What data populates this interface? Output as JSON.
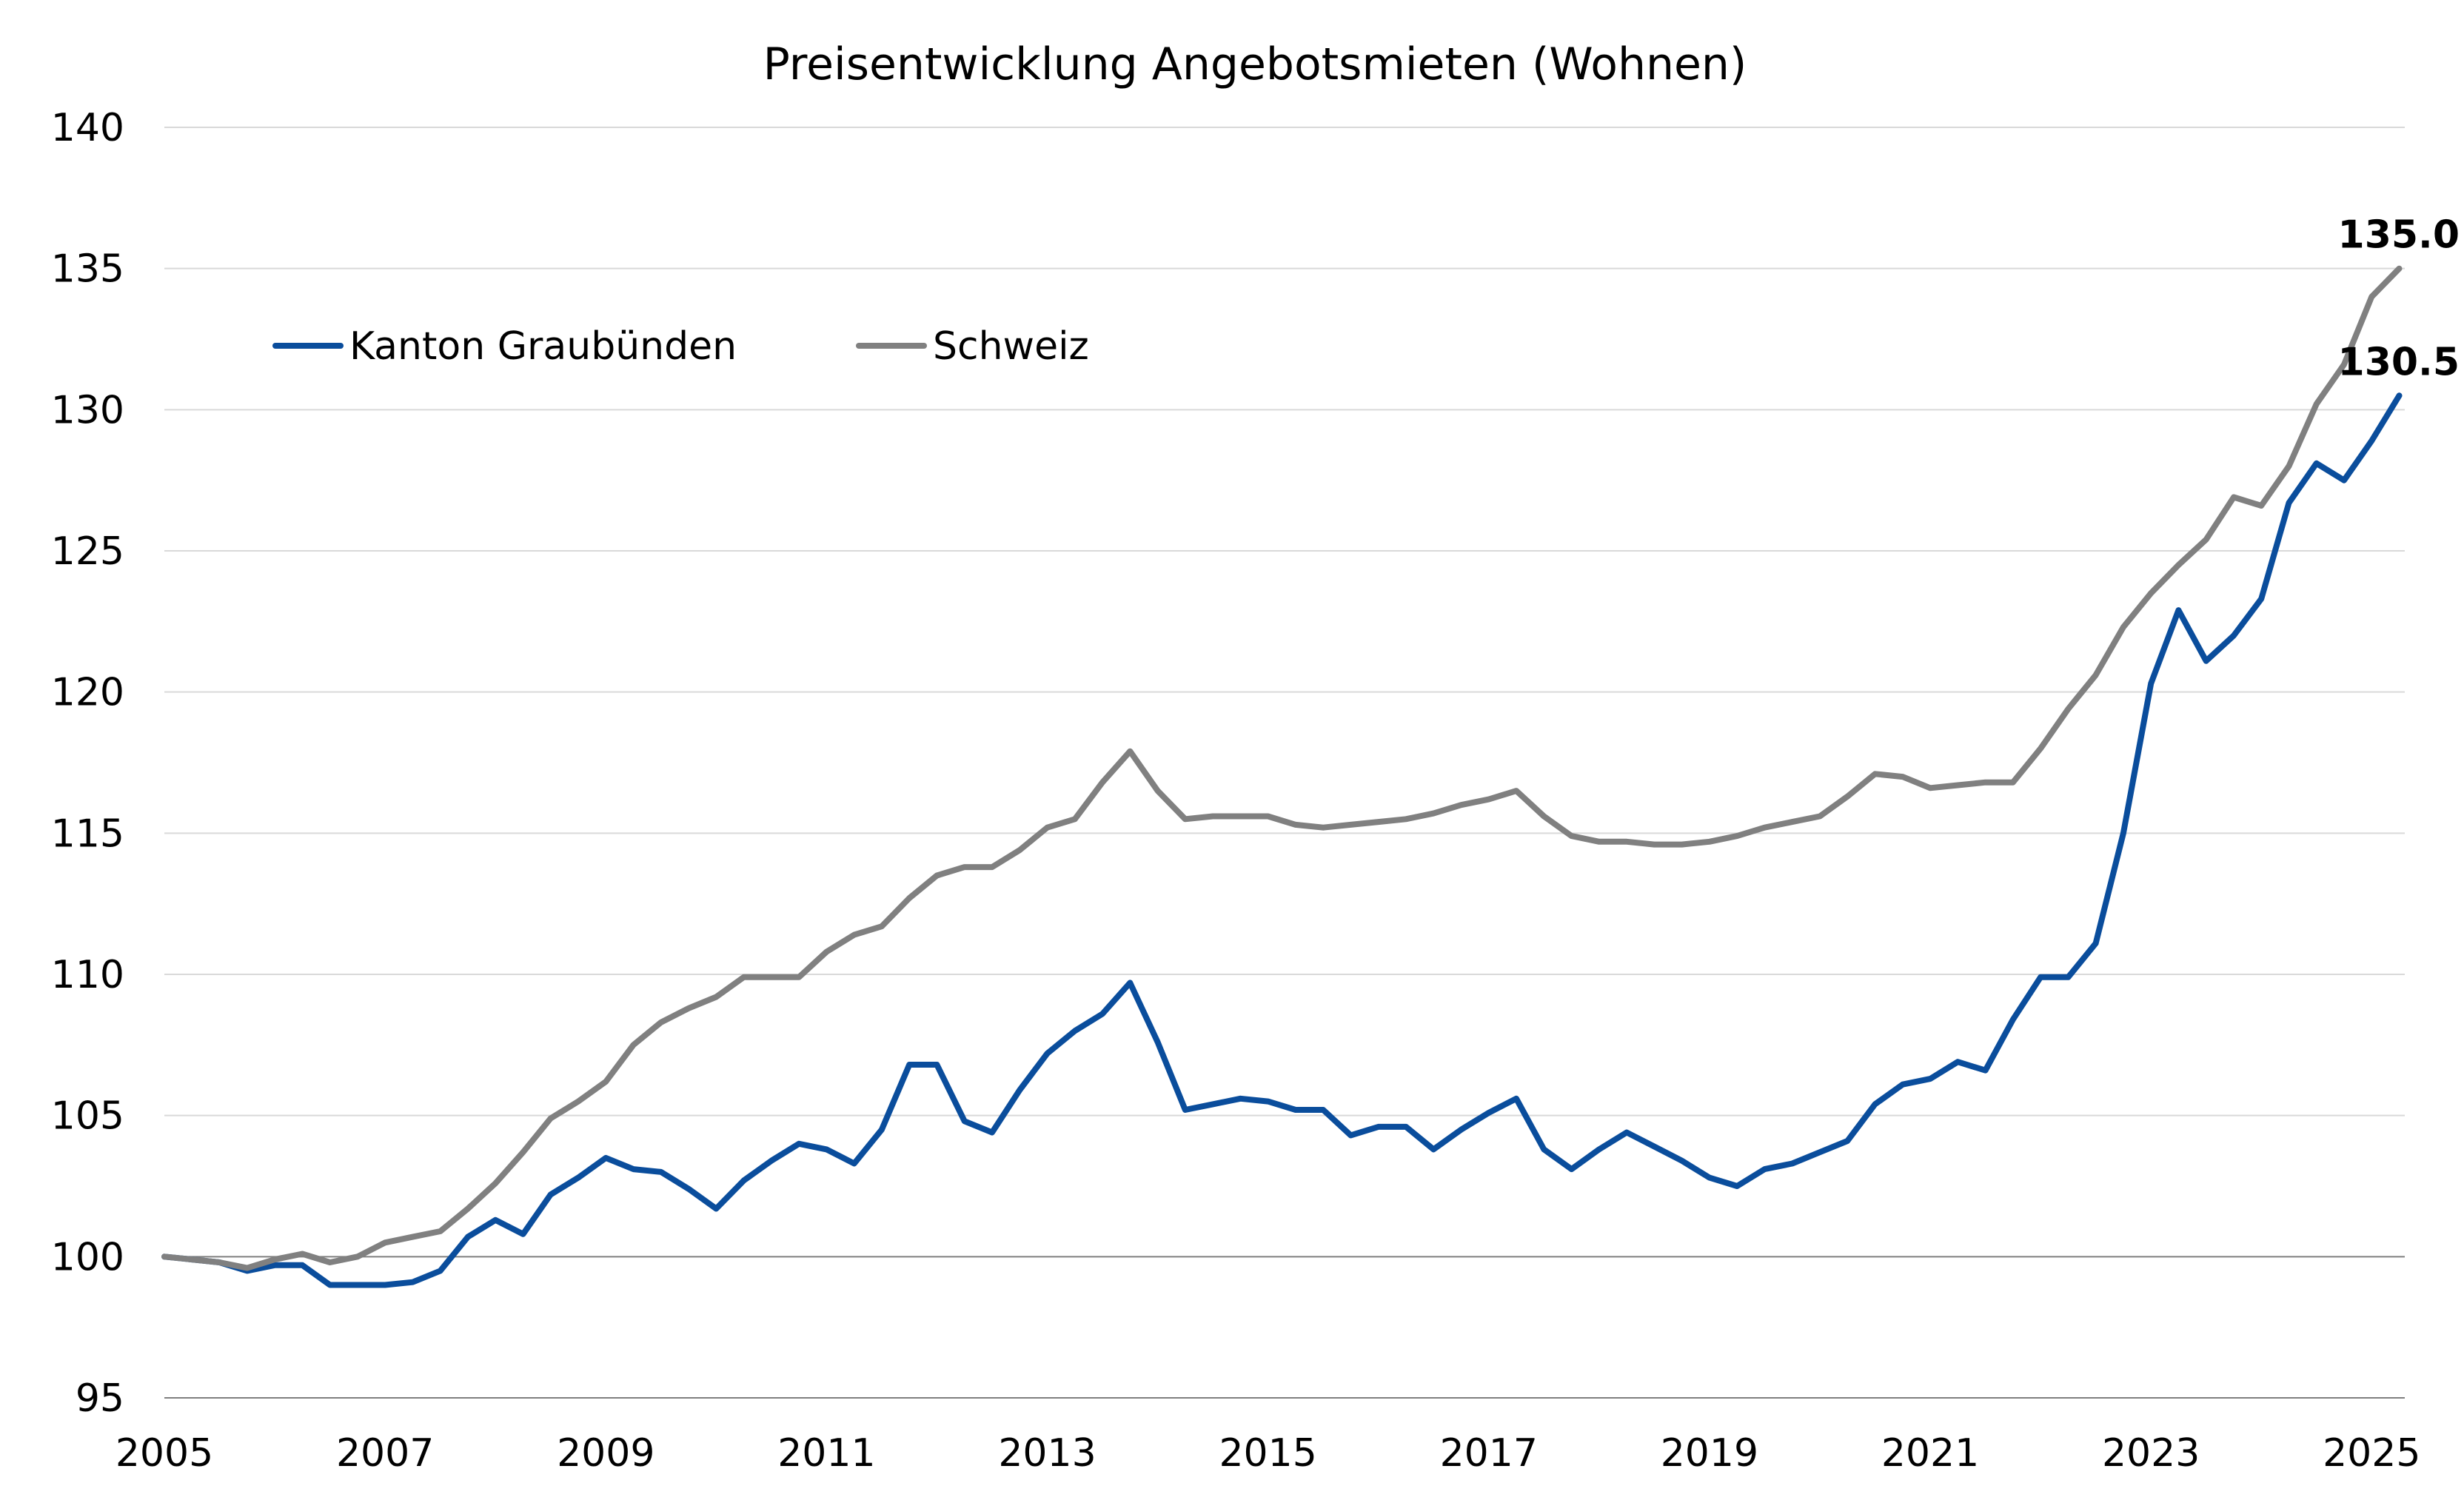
{
  "chart_data": {
    "type": "line",
    "title": "Preisentwicklung Angebotsmieten (Wohnen)",
    "xlabel": "",
    "ylabel": "",
    "xlim": [
      2005,
      2025.3
    ],
    "ylim": [
      95,
      140
    ],
    "y_ticks": [
      95,
      100,
      105,
      110,
      115,
      120,
      125,
      130,
      135,
      140
    ],
    "x_ticks": [
      2005,
      2007,
      2009,
      2011,
      2013,
      2015,
      2017,
      2019,
      2021,
      2023,
      2025
    ],
    "x_tick_labels": [
      "2005",
      "2007",
      "2009",
      "2011",
      "2013",
      "2015",
      "2017",
      "2019",
      "2021",
      "2023",
      "2025"
    ],
    "y_tick_labels": [
      "95",
      "100",
      "105",
      "110",
      "115",
      "120",
      "125",
      "130",
      "135",
      "140"
    ],
    "grid": true,
    "baseline": 100,
    "legend_position": "top-left",
    "x": [
      2005.0,
      2005.25,
      2005.5,
      2005.75,
      2006.0,
      2006.25,
      2006.5,
      2006.75,
      2007.0,
      2007.25,
      2007.5,
      2007.75,
      2008.0,
      2008.25,
      2008.5,
      2008.75,
      2009.0,
      2009.25,
      2009.5,
      2009.75,
      2010.0,
      2010.25,
      2010.5,
      2010.75,
      2011.0,
      2011.25,
      2011.5,
      2011.75,
      2012.0,
      2012.25,
      2012.5,
      2012.75,
      2013.0,
      2013.25,
      2013.5,
      2013.75,
      2014.0,
      2014.25,
      2014.5,
      2014.75,
      2015.0,
      2015.25,
      2015.5,
      2015.75,
      2016.0,
      2016.25,
      2016.5,
      2016.75,
      2017.0,
      2017.25,
      2017.5,
      2017.75,
      2018.0,
      2018.25,
      2018.5,
      2018.75,
      2019.0,
      2019.25,
      2019.5,
      2019.75,
      2020.0,
      2020.25,
      2020.5,
      2020.75,
      2021.0,
      2021.25,
      2021.5,
      2021.75,
      2022.0,
      2022.25,
      2022.5,
      2022.75,
      2023.0,
      2023.25,
      2023.5,
      2023.75,
      2024.0,
      2024.25,
      2024.5,
      2024.75,
      2025.0,
      2025.25
    ],
    "series": [
      {
        "name": "Kanton Graubünden",
        "color": "#0a4d9c",
        "end_label": "130.5",
        "values": [
          100.0,
          99.9,
          99.8,
          99.5,
          99.7,
          99.7,
          99.0,
          99.0,
          99.0,
          99.1,
          99.5,
          100.7,
          101.3,
          100.8,
          102.2,
          102.8,
          103.5,
          103.1,
          103.0,
          102.4,
          101.7,
          102.7,
          103.4,
          104.0,
          103.8,
          103.3,
          104.5,
          106.8,
          106.8,
          104.8,
          104.4,
          105.9,
          107.2,
          108.0,
          108.6,
          109.7,
          107.6,
          105.2,
          105.4,
          105.6,
          105.5,
          105.2,
          105.2,
          104.3,
          104.6,
          104.6,
          103.8,
          104.5,
          105.1,
          105.6,
          103.8,
          103.1,
          103.8,
          104.4,
          103.9,
          103.4,
          102.8,
          102.5,
          103.1,
          103.3,
          103.7,
          104.1,
          105.4,
          106.1,
          106.3,
          106.9,
          106.6,
          108.4,
          109.9,
          109.9,
          111.1,
          115.0,
          120.3,
          122.9,
          121.1,
          122.0,
          123.3,
          126.7,
          128.1,
          127.5,
          128.9,
          130.5
        ]
      },
      {
        "name": "Schweiz",
        "color": "#808080",
        "end_label": "135.0",
        "values": [
          100.0,
          99.9,
          99.8,
          99.6,
          99.9,
          100.1,
          99.8,
          100.0,
          100.5,
          100.7,
          100.9,
          101.7,
          102.6,
          103.7,
          104.9,
          105.5,
          106.2,
          107.5,
          108.3,
          108.8,
          109.2,
          109.9,
          109.9,
          109.9,
          110.8,
          111.4,
          111.7,
          112.7,
          113.5,
          113.8,
          113.8,
          114.4,
          115.2,
          115.5,
          116.8,
          117.9,
          116.5,
          115.5,
          115.6,
          115.6,
          115.6,
          115.3,
          115.2,
          115.3,
          115.4,
          115.5,
          115.7,
          116.0,
          116.2,
          116.5,
          115.6,
          114.9,
          114.7,
          114.7,
          114.6,
          114.6,
          114.7,
          114.9,
          115.2,
          115.4,
          115.6,
          116.3,
          117.1,
          117.0,
          116.6,
          116.7,
          116.8,
          116.8,
          118.0,
          119.4,
          120.6,
          122.3,
          123.5,
          124.5,
          125.4,
          126.9,
          126.6,
          128.0,
          130.2,
          131.6,
          134.0,
          135.0
        ]
      }
    ]
  }
}
